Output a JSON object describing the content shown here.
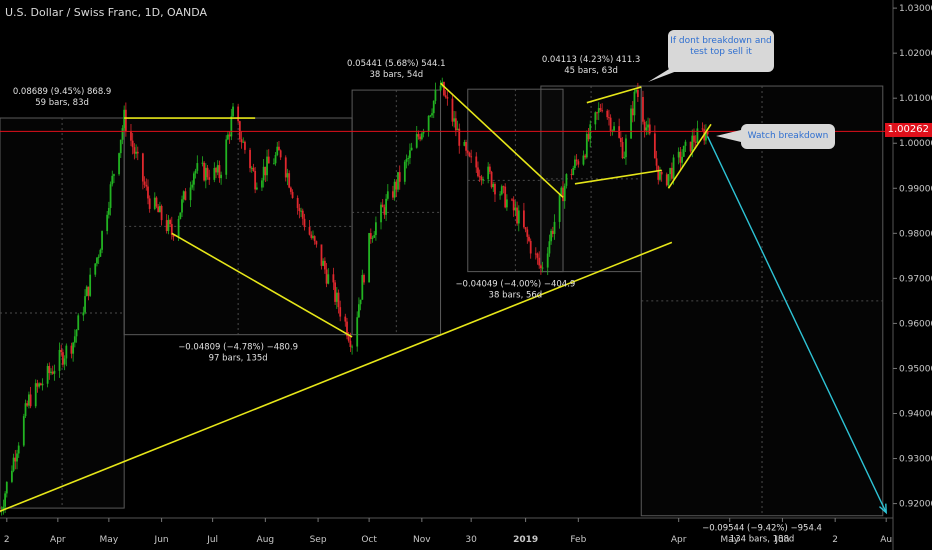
{
  "header": {
    "title": "U.S. Dollar / Swiss Franc, 1D, OANDA"
  },
  "current_price": {
    "value": 1.00262,
    "label": "1.00262",
    "color": "#e0101b"
  },
  "callouts": {
    "top": {
      "lines": [
        "If dont breakdown and",
        "test top sell it"
      ]
    },
    "right": {
      "text": "Watch breakdown"
    }
  },
  "chart_data": {
    "type": "candlestick",
    "symbol": "USD/CHF",
    "timeframe": "1D",
    "y_axis": {
      "ticks": [
        0.92,
        0.93,
        0.94,
        0.95,
        0.96,
        0.97,
        0.98,
        0.99,
        1.0,
        1.01,
        1.02,
        1.03
      ],
      "tick_labels": [
        "0.92000",
        "0.93000",
        "0.94000",
        "0.95000",
        "0.96000",
        "0.97000",
        "0.98000",
        "0.99000",
        "1.00000",
        "1.01000",
        "1.02000",
        "1.03000"
      ],
      "range": [
        0.9168,
        1.0318
      ]
    },
    "x_axis": {
      "tick_labels": [
        "2",
        "Apr",
        "May",
        "Jun",
        "Jul",
        "Aug",
        "Sep",
        "Oct",
        "Nov",
        "30",
        "2019",
        "Feb",
        "Apr",
        "May",
        "Jun",
        "2",
        "Au"
      ],
      "range": [
        "2018-02-26",
        "2019-08-05"
      ]
    },
    "price_path": [
      [
        "2018-02-26",
        0.9183
      ],
      [
        "2018-03-15",
        0.943
      ],
      [
        "2018-04-10",
        0.956
      ],
      [
        "2018-04-25",
        0.976
      ],
      [
        "2018-05-10",
        1.0056
      ],
      [
        "2018-05-24",
        0.988
      ],
      [
        "2018-06-07",
        0.98
      ],
      [
        "2018-06-20",
        0.994
      ],
      [
        "2018-07-05",
        0.993
      ],
      [
        "2018-07-13",
        1.0065
      ],
      [
        "2018-07-26",
        0.992
      ],
      [
        "2018-08-10",
        0.998
      ],
      [
        "2018-08-20",
        0.986
      ],
      [
        "2018-09-05",
        0.972
      ],
      [
        "2018-09-21",
        0.956
      ],
      [
        "2018-10-02",
        0.98
      ],
      [
        "2018-10-20",
        0.993
      ],
      [
        "2018-11-12",
        1.0128
      ],
      [
        "2018-11-28",
        0.996
      ],
      [
        "2018-12-10",
        0.993
      ],
      [
        "2018-12-27",
        0.984
      ],
      [
        "2019-01-10",
        0.972
      ],
      [
        "2019-01-25",
        0.992
      ],
      [
        "2019-02-05",
        0.999
      ],
      [
        "2019-02-15",
        1.009
      ],
      [
        "2019-02-28",
        0.998
      ],
      [
        "2019-03-07",
        1.012
      ],
      [
        "2019-03-22",
        0.991
      ],
      [
        "2019-04-10",
        1.001
      ],
      [
        "2019-04-18",
        1.0026
      ]
    ],
    "horizontal_lines": [
      {
        "price": 1.00262,
        "color": "#e0101b"
      }
    ],
    "trendlines": [
      {
        "from": [
          "2018-02-26",
          0.9183
        ],
        "to": [
          "2019-03-28",
          0.978
        ],
        "color": "#e6e619"
      },
      {
        "from": [
          "2018-05-10",
          1.0056
        ],
        "to": [
          "2018-07-26",
          1.0056
        ],
        "color": "#e6e619"
      },
      {
        "from": [
          "2018-06-07",
          0.98
        ],
        "to": [
          "2018-09-21",
          0.957
        ],
        "color": "#e6e619"
      },
      {
        "from": [
          "2018-11-12",
          1.0133
        ],
        "to": [
          "2019-01-23",
          0.988
        ],
        "color": "#e6e619"
      },
      {
        "from": [
          "2019-02-06",
          1.009
        ],
        "to": [
          "2019-03-10",
          1.0125
        ],
        "color": "#e6e619"
      },
      {
        "from": [
          "2019-01-30",
          0.991
        ],
        "to": [
          "2019-03-22",
          0.994
        ],
        "color": "#e6e619"
      },
      {
        "from": [
          "2019-03-26",
          0.99
        ],
        "to": [
          "2019-04-20",
          1.0042
        ],
        "color": "#e6e619"
      }
    ],
    "projection": {
      "from": [
        "2019-04-18",
        1.0015
      ],
      "to": [
        "2019-08-01",
        0.918
      ],
      "color": "#2ec4d6"
    },
    "measurements": [
      {
        "start": "2018-02-26",
        "end": "2018-05-10",
        "low": 0.919,
        "high": 1.0056,
        "label_lines": [
          "0.08689 (9.45%) 868.9",
          "59 bars, 83d"
        ],
        "label_pos": "above"
      },
      {
        "start": "2018-05-10",
        "end": "2018-09-21",
        "low": 0.9575,
        "high": 1.0056,
        "label_lines": [
          "−0.04809 (−4.78%) −480.9",
          "97 bars, 135d"
        ],
        "label_pos": "below"
      },
      {
        "start": "2018-09-21",
        "end": "2018-11-12",
        "low": 0.9575,
        "high": 1.0118,
        "label_lines": [
          "0.05441 (5.68%) 544.1",
          "38 bars, 54d"
        ],
        "label_pos": "above"
      },
      {
        "start": "2018-11-28",
        "end": "2019-01-23",
        "low": 0.9715,
        "high": 1.012,
        "label_lines": [
          "−0.04049 (−4.00%) −404.9",
          "38 bars, 56d"
        ],
        "label_pos": "below"
      },
      {
        "start": "2019-01-10",
        "end": "2019-03-10",
        "low": 0.9715,
        "high": 1.0127,
        "label_lines": [
          "0.04113 (4.23%) 411.3",
          "45 bars, 63d"
        ],
        "label_pos": "above"
      },
      {
        "start": "2019-03-10",
        "end": "2019-07-30",
        "low": 0.9173,
        "high": 1.0127,
        "label_lines": [
          "−0.09544 (−9.42%) −954.4",
          "134 bars, 188d"
        ],
        "label_pos": "below"
      }
    ],
    "colors": {
      "up": "#22b322",
      "down": "#e0282e",
      "axis_text": "#c8c8c8",
      "grid": "#3a3a3a"
    }
  }
}
